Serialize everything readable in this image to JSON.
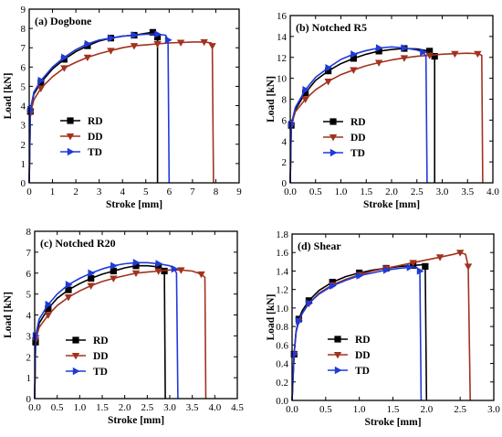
{
  "colors": {
    "RD": "#000000",
    "DD": "#a2321e",
    "TD": "#1f3ad8"
  },
  "chart_data": [
    {
      "type": "line",
      "title": "(a) Dogbone",
      "xlabel": "Stroke [mm]",
      "ylabel": "Load [kN]",
      "xlim": [
        0,
        9
      ],
      "ylim": [
        0,
        9
      ],
      "xticks": [
        "0",
        "1",
        "2",
        "3",
        "4",
        "5",
        "6",
        "7",
        "8",
        "9"
      ],
      "yticks": [
        "0",
        "1",
        "2",
        "3",
        "4",
        "5",
        "6",
        "7",
        "8",
        "9"
      ],
      "grid": false,
      "legend_position": "middle-left",
      "series": [
        {
          "name": "RD",
          "marker": "square",
          "x": [
            0,
            0.05,
            0.2,
            0.5,
            1.0,
            1.5,
            2.0,
            2.5,
            3.0,
            3.5,
            4.0,
            4.5,
            5.0,
            5.3,
            5.45,
            5.5,
            5.5
          ],
          "y": [
            0,
            3.7,
            4.6,
            5.2,
            5.9,
            6.4,
            6.8,
            7.1,
            7.35,
            7.5,
            7.6,
            7.65,
            7.75,
            7.8,
            7.75,
            7.55,
            0
          ]
        },
        {
          "name": "DD",
          "marker": "triangle-down",
          "x": [
            0,
            0.05,
            0.2,
            0.5,
            1.0,
            1.5,
            2.0,
            2.5,
            3.0,
            3.5,
            4.0,
            4.5,
            5.0,
            5.5,
            6.0,
            6.5,
            7.0,
            7.5,
            7.8,
            7.85,
            7.9
          ],
          "y": [
            0,
            3.6,
            4.3,
            4.9,
            5.5,
            5.95,
            6.25,
            6.5,
            6.7,
            6.85,
            7.0,
            7.1,
            7.15,
            7.2,
            7.25,
            7.27,
            7.3,
            7.3,
            7.25,
            7.1,
            0
          ]
        },
        {
          "name": "TD",
          "marker": "triangle-right",
          "x": [
            0,
            0.05,
            0.2,
            0.5,
            1.0,
            1.5,
            2.0,
            2.5,
            3.0,
            3.5,
            4.0,
            4.5,
            5.0,
            5.5,
            5.85,
            5.95,
            6.0
          ],
          "y": [
            0,
            3.8,
            4.7,
            5.3,
            6.0,
            6.5,
            6.9,
            7.2,
            7.4,
            7.5,
            7.6,
            7.65,
            7.7,
            7.7,
            7.65,
            7.4,
            0
          ]
        }
      ]
    },
    {
      "type": "line",
      "title": "(b) Notched R5",
      "xlabel": "Stroke [mm]",
      "ylabel": "Load [kN]",
      "xlim": [
        0,
        4
      ],
      "ylim": [
        0,
        16
      ],
      "xticks": [
        "0.0",
        "0.5",
        "1.0",
        "1.5",
        "2.0",
        "2.5",
        "3.0",
        "3.5",
        "4.0"
      ],
      "yticks": [
        "0",
        "2",
        "4",
        "6",
        "8",
        "10",
        "12",
        "14",
        "16"
      ],
      "grid": false,
      "legend_position": "middle-right",
      "series": [
        {
          "name": "RD",
          "marker": "square",
          "x": [
            0,
            0.02,
            0.1,
            0.3,
            0.5,
            0.75,
            1.0,
            1.25,
            1.5,
            1.75,
            2.0,
            2.25,
            2.5,
            2.75,
            2.8,
            2.85,
            2.85
          ],
          "y": [
            0,
            5.5,
            7.0,
            8.6,
            9.8,
            10.7,
            11.4,
            11.9,
            12.3,
            12.6,
            12.75,
            12.85,
            12.8,
            12.6,
            12.3,
            12.1,
            0
          ]
        },
        {
          "name": "DD",
          "marker": "triangle-down",
          "x": [
            0,
            0.02,
            0.1,
            0.3,
            0.5,
            0.75,
            1.0,
            1.25,
            1.5,
            1.75,
            2.0,
            2.25,
            2.5,
            2.75,
            3.0,
            3.25,
            3.5,
            3.7,
            3.78,
            3.8
          ],
          "y": [
            0,
            5.5,
            6.8,
            8.0,
            8.9,
            9.7,
            10.35,
            10.8,
            11.2,
            11.5,
            11.75,
            11.95,
            12.1,
            12.2,
            12.3,
            12.35,
            12.4,
            12.35,
            12.2,
            0
          ]
        },
        {
          "name": "TD",
          "marker": "triangle-right",
          "x": [
            0,
            0.02,
            0.1,
            0.3,
            0.5,
            0.75,
            1.0,
            1.25,
            1.5,
            1.75,
            2.0,
            2.25,
            2.5,
            2.62,
            2.68,
            2.7
          ],
          "y": [
            0,
            5.6,
            7.2,
            8.9,
            10.1,
            11.0,
            11.8,
            12.3,
            12.65,
            12.9,
            13.0,
            12.9,
            12.7,
            12.5,
            12.1,
            0
          ]
        }
      ]
    },
    {
      "type": "line",
      "title": "(c) Notched R20",
      "xlabel": "Stroke [mm]",
      "ylabel": "Load [kN]",
      "xlim": [
        0,
        4.5
      ],
      "ylim": [
        0,
        8
      ],
      "xticks": [
        "0.0",
        "0.5",
        "1.0",
        "1.5",
        "2.0",
        "2.5",
        "3.0",
        "3.5",
        "4.0",
        "4.5"
      ],
      "yticks": [
        "0",
        "1",
        "2",
        "3",
        "4",
        "5",
        "6",
        "7",
        "8"
      ],
      "grid": false,
      "legend_position": "bottom-right",
      "series": [
        {
          "name": "RD",
          "marker": "square",
          "x": [
            0,
            0.02,
            0.1,
            0.3,
            0.5,
            0.75,
            1.0,
            1.25,
            1.5,
            1.75,
            2.0,
            2.25,
            2.5,
            2.75,
            2.85,
            2.88,
            2.9
          ],
          "y": [
            0,
            2.7,
            3.6,
            4.3,
            4.8,
            5.2,
            5.5,
            5.75,
            5.95,
            6.1,
            6.25,
            6.35,
            6.35,
            6.3,
            6.2,
            6.1,
            0
          ]
        },
        {
          "name": "DD",
          "marker": "triangle-down",
          "x": [
            0,
            0.02,
            0.1,
            0.3,
            0.5,
            0.75,
            1.0,
            1.25,
            1.5,
            1.75,
            2.0,
            2.25,
            2.5,
            2.75,
            3.0,
            3.25,
            3.5,
            3.7,
            3.78,
            3.8
          ],
          "y": [
            0,
            2.8,
            3.4,
            4.0,
            4.45,
            4.85,
            5.15,
            5.4,
            5.6,
            5.75,
            5.88,
            6.0,
            6.05,
            6.1,
            6.15,
            6.15,
            6.1,
            5.95,
            5.8,
            0
          ]
        },
        {
          "name": "TD",
          "marker": "triangle-right",
          "x": [
            0,
            0.02,
            0.1,
            0.3,
            0.5,
            0.75,
            1.0,
            1.25,
            1.5,
            1.75,
            2.0,
            2.25,
            2.5,
            2.75,
            3.0,
            3.1,
            3.15,
            3.18
          ],
          "y": [
            0,
            3.0,
            3.8,
            4.5,
            5.0,
            5.45,
            5.75,
            6.0,
            6.2,
            6.35,
            6.45,
            6.5,
            6.5,
            6.45,
            6.35,
            6.2,
            6.0,
            0
          ]
        }
      ]
    },
    {
      "type": "line",
      "title": "(d) Shear",
      "xlabel": "Stroke [mm]",
      "ylabel": "Load [kN]",
      "xlim": [
        0,
        3
      ],
      "ylim": [
        0,
        1.8
      ],
      "xticks": [
        "0.0",
        "0.5",
        "1.0",
        "1.5",
        "2.0",
        "2.5",
        "3.0"
      ],
      "yticks": [
        "0.0",
        "0.2",
        "0.4",
        "0.6",
        "0.8",
        "1.0",
        "1.2",
        "1.4",
        "1.6",
        "1.8"
      ],
      "grid": false,
      "legend_position": "bottom-right",
      "series": [
        {
          "name": "RD",
          "marker": "square",
          "x": [
            0,
            0.03,
            0.06,
            0.1,
            0.15,
            0.25,
            0.4,
            0.6,
            0.8,
            1.0,
            1.2,
            1.4,
            1.6,
            1.8,
            1.95,
            1.98,
            2.0
          ],
          "y": [
            0,
            0.5,
            0.75,
            0.88,
            0.97,
            1.08,
            1.19,
            1.28,
            1.34,
            1.38,
            1.41,
            1.43,
            1.45,
            1.46,
            1.47,
            1.45,
            0
          ]
        },
        {
          "name": "DD",
          "marker": "triangle-down",
          "x": [
            0,
            0.03,
            0.06,
            0.1,
            0.15,
            0.25,
            0.4,
            0.6,
            0.8,
            1.0,
            1.2,
            1.4,
            1.6,
            1.8,
            2.0,
            2.2,
            2.4,
            2.5,
            2.58,
            2.62,
            2.65
          ],
          "y": [
            0,
            0.5,
            0.74,
            0.86,
            0.94,
            1.05,
            1.16,
            1.25,
            1.31,
            1.36,
            1.4,
            1.43,
            1.46,
            1.49,
            1.52,
            1.55,
            1.58,
            1.6,
            1.58,
            1.45,
            0
          ]
        },
        {
          "name": "TD",
          "marker": "triangle-right",
          "x": [
            0,
            0.03,
            0.06,
            0.1,
            0.15,
            0.25,
            0.4,
            0.6,
            0.8,
            1.0,
            1.2,
            1.4,
            1.6,
            1.75,
            1.85,
            1.9,
            1.92
          ],
          "y": [
            0,
            0.5,
            0.74,
            0.86,
            0.94,
            1.05,
            1.15,
            1.24,
            1.3,
            1.35,
            1.38,
            1.41,
            1.43,
            1.44,
            1.44,
            1.4,
            0
          ]
        }
      ]
    }
  ]
}
